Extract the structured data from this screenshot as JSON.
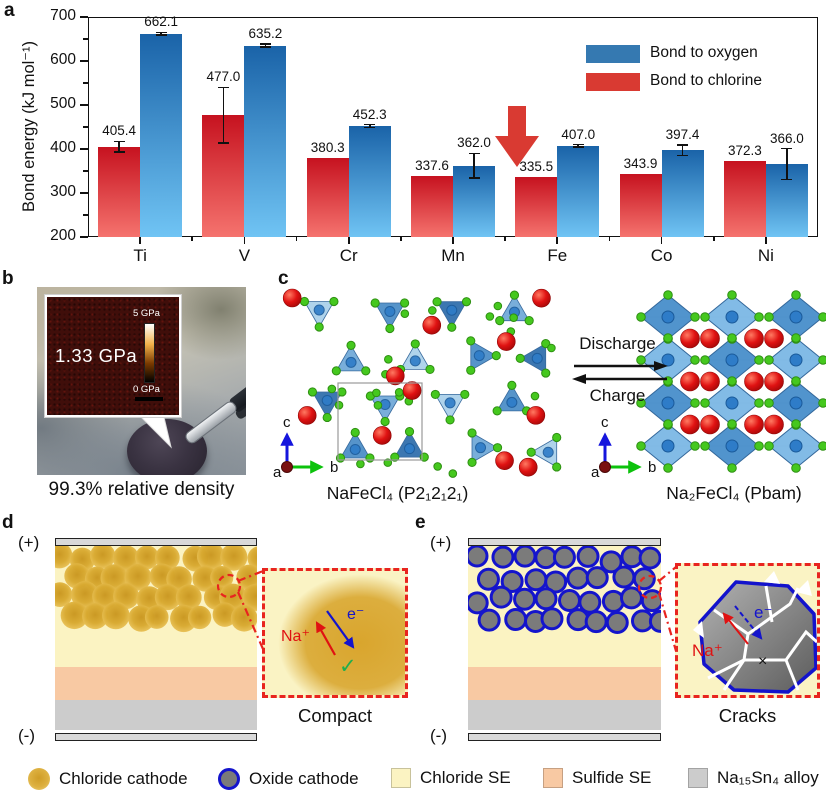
{
  "panels": {
    "a": "a",
    "b": "b",
    "c": "c",
    "d": "d",
    "e": "e"
  },
  "chart_data": {
    "type": "bar",
    "title": "",
    "ylabel": "Bond energy (kJ mol⁻¹)",
    "categories": [
      "Ti",
      "V",
      "Cr",
      "Mn",
      "Fe",
      "Co",
      "Ni"
    ],
    "series": [
      {
        "name": "Bond to chlorine",
        "values": [
          405.4,
          477.0,
          380.3,
          337.6,
          335.5,
          343.9,
          372.3
        ],
        "errors": [
          12,
          63,
          0,
          0,
          0,
          0,
          0
        ],
        "bar_top": "#c6121f",
        "bar_bottom": "#f5736e"
      },
      {
        "name": "Bond to oxygen",
        "values": [
          662.1,
          635.2,
          452.3,
          362.0,
          407.0,
          397.4,
          366.0
        ],
        "errors": [
          3,
          3,
          3,
          28,
          3,
          12,
          35
        ],
        "bar_top": "#1a63a8",
        "bar_bottom": "#70c4f4"
      }
    ],
    "legend": [
      {
        "label": "Bond to oxygen",
        "color": "#3579b1"
      },
      {
        "label": "Bond to chlorine",
        "color": "#d93a32"
      }
    ],
    "legend_position": "top-right",
    "grid": false,
    "ylim": [
      200,
      700
    ],
    "ytick_major": 100,
    "ytick_minor": 50,
    "annotation": {
      "shape": "down-arrow",
      "category": "Fe",
      "color": "#d93a32"
    }
  },
  "panel_b": {
    "inset_value": "1.33 GPa",
    "scale_top": "5 GPa",
    "scale_bottom": "0 GPa",
    "caption": "99.3% relative density"
  },
  "panel_c": {
    "left_formula": "NaFeCl₄ (P2₁2₁2₁)",
    "right_formula": "Na₂FeCl₄ (Pbam)",
    "forward": "Discharge",
    "backward": "Charge",
    "axis": {
      "a": "a",
      "b": "b",
      "c": "c"
    }
  },
  "panel_d": {
    "plus": "(+)",
    "minus": "(-)",
    "na": "Na⁺",
    "electron": "e⁻",
    "check": "✓",
    "label": "Compact"
  },
  "panel_e": {
    "plus": "(+)",
    "minus": "(-)",
    "na": "Na⁺",
    "electron": "e⁻",
    "cross": "×",
    "label": "Cracks"
  },
  "legend_bottom": {
    "items": [
      {
        "icon": "chloride-cathode-icon",
        "label": "Chloride cathode"
      },
      {
        "icon": "oxide-cathode-icon",
        "label": "Oxide cathode"
      },
      {
        "icon": "chloride-se-icon",
        "label": "Chloride SE"
      },
      {
        "icon": "sulfide-se-icon",
        "label": "Sulfide SE"
      },
      {
        "icon": "alloy-icon",
        "label": "Na₁₅Sn₄ alloy"
      }
    ]
  },
  "colors": {
    "bar_red_top": "#c6121f",
    "bar_red_bottom": "#f5736e",
    "bar_blue_top": "#1a63a8",
    "bar_blue_bottom": "#70c4f4",
    "annotation_red": "#d93a32",
    "na_sphere": "#e01212",
    "cl_sphere": "#45c81e",
    "fe_center": "#2e7cc8",
    "tetra_shades": [
      "#a9d0ea",
      "#4a8cc6",
      "#2e6dac",
      "#6fa8d8"
    ],
    "octa_light": "#7db9e6",
    "octa_dark": "#4a90cc",
    "chloride_se": "#fbf3c2",
    "sulfide_se": "#f8c9a3",
    "alloy": "#cccccc",
    "electrode": "#d9d9d9",
    "gold_center": "#c9961f",
    "gold_edge": "#ecc65f",
    "oxide_fill": "#7b7b7b",
    "oxide_ring": "#1414cc"
  }
}
